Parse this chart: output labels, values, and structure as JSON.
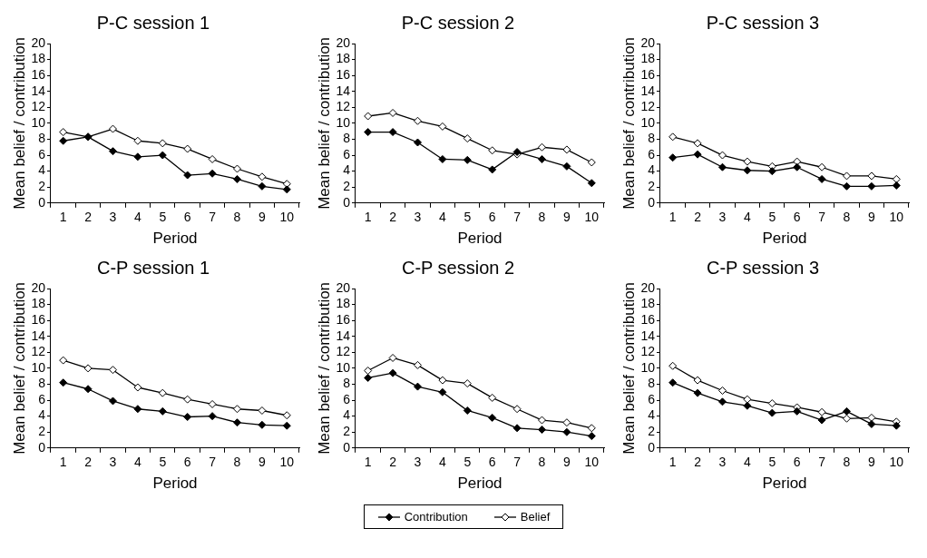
{
  "chart_data": [
    {
      "type": "line",
      "title": "P-C session 1",
      "xlabel": "Period",
      "ylabel": "Mean belief / contribution",
      "categories": [
        "1",
        "2",
        "3",
        "4",
        "5",
        "6",
        "7",
        "8",
        "9",
        "10"
      ],
      "ylim": [
        0,
        20
      ],
      "yticks": [
        0,
        2,
        4,
        6,
        8,
        10,
        12,
        14,
        16,
        18,
        20
      ],
      "grid": false,
      "marker": "diamond",
      "legend": "bottom",
      "series": [
        {
          "name": "Contribution",
          "color": "#000000",
          "values": [
            7.8,
            8.3,
            6.5,
            5.8,
            6.0,
            3.5,
            3.7,
            3.0,
            2.1,
            1.7
          ]
        },
        {
          "name": "Belief",
          "color": "#ffffff",
          "values": [
            8.9,
            8.3,
            9.3,
            7.8,
            7.5,
            6.8,
            5.5,
            4.3,
            3.3,
            2.4
          ]
        }
      ]
    },
    {
      "type": "line",
      "title": "P-C session 2",
      "xlabel": "Period",
      "ylabel": "Mean belief / contribution",
      "categories": [
        "1",
        "2",
        "3",
        "4",
        "5",
        "6",
        "7",
        "8",
        "9",
        "10"
      ],
      "ylim": [
        0,
        20
      ],
      "yticks": [
        0,
        2,
        4,
        6,
        8,
        10,
        12,
        14,
        16,
        18,
        20
      ],
      "grid": false,
      "marker": "diamond",
      "series": [
        {
          "color": "#000000",
          "values": [
            8.9,
            8.9,
            7.6,
            5.5,
            5.4,
            4.2,
            6.4,
            5.5,
            4.6,
            2.5
          ]
        },
        {
          "color": "#ffffff",
          "values": [
            10.9,
            11.3,
            10.3,
            9.6,
            8.1,
            6.6,
            6.1,
            7.0,
            6.7,
            5.1
          ]
        }
      ]
    },
    {
      "type": "line",
      "title": "P-C session 3",
      "xlabel": "Period",
      "ylabel": "Mean belief / contribution",
      "categories": [
        "1",
        "2",
        "3",
        "4",
        "5",
        "6",
        "7",
        "8",
        "9",
        "10"
      ],
      "ylim": [
        0,
        20
      ],
      "yticks": [
        0,
        2,
        4,
        6,
        8,
        10,
        12,
        14,
        16,
        18,
        20
      ],
      "grid": false,
      "marker": "diamond",
      "series": [
        {
          "color": "#000000",
          "values": [
            5.7,
            6.1,
            4.5,
            4.1,
            4.0,
            4.5,
            3.0,
            2.1,
            2.1,
            2.2
          ]
        },
        {
          "color": "#ffffff",
          "values": [
            8.3,
            7.5,
            6.0,
            5.2,
            4.6,
            5.2,
            4.5,
            3.4,
            3.4,
            3.0
          ]
        }
      ]
    },
    {
      "type": "line",
      "title": "C-P session 1",
      "xlabel": "Period",
      "ylabel": "Mean belief / contribution",
      "categories": [
        "1",
        "2",
        "3",
        "4",
        "5",
        "6",
        "7",
        "8",
        "9",
        "10"
      ],
      "ylim": [
        0,
        20
      ],
      "yticks": [
        0,
        2,
        4,
        6,
        8,
        10,
        12,
        14,
        16,
        18,
        20
      ],
      "grid": false,
      "marker": "diamond",
      "series": [
        {
          "color": "#000000",
          "values": [
            8.2,
            7.4,
            5.9,
            4.9,
            4.6,
            3.9,
            4.0,
            3.2,
            2.9,
            2.8
          ]
        },
        {
          "color": "#ffffff",
          "values": [
            11.0,
            10.0,
            9.8,
            7.6,
            6.9,
            6.1,
            5.5,
            4.9,
            4.7,
            4.1
          ]
        }
      ]
    },
    {
      "type": "line",
      "title": "C-P session 2",
      "xlabel": "Period",
      "ylabel": "Mean belief / contribution",
      "categories": [
        "1",
        "2",
        "3",
        "4",
        "5",
        "6",
        "7",
        "8",
        "9",
        "10"
      ],
      "ylim": [
        0,
        20
      ],
      "yticks": [
        0,
        2,
        4,
        6,
        8,
        10,
        12,
        14,
        16,
        18,
        20
      ],
      "grid": false,
      "marker": "diamond",
      "series": [
        {
          "color": "#000000",
          "values": [
            8.8,
            9.4,
            7.7,
            7.0,
            4.7,
            3.8,
            2.5,
            2.3,
            2.0,
            1.5
          ]
        },
        {
          "color": "#ffffff",
          "values": [
            9.7,
            11.3,
            10.4,
            8.5,
            8.1,
            6.3,
            4.9,
            3.5,
            3.2,
            2.5
          ]
        }
      ]
    },
    {
      "type": "line",
      "title": "C-P session 3",
      "xlabel": "Period",
      "ylabel": "Mean belief / contribution",
      "categories": [
        "1",
        "2",
        "3",
        "4",
        "5",
        "6",
        "7",
        "8",
        "9",
        "10"
      ],
      "ylim": [
        0,
        20
      ],
      "yticks": [
        0,
        2,
        4,
        6,
        8,
        10,
        12,
        14,
        16,
        18,
        20
      ],
      "grid": false,
      "marker": "diamond",
      "series": [
        {
          "color": "#000000",
          "values": [
            8.2,
            6.9,
            5.8,
            5.3,
            4.4,
            4.6,
            3.5,
            4.6,
            3.0,
            2.8
          ]
        },
        {
          "color": "#ffffff",
          "values": [
            10.3,
            8.5,
            7.2,
            6.1,
            5.6,
            5.1,
            4.5,
            3.7,
            3.8,
            3.3
          ]
        }
      ]
    }
  ]
}
